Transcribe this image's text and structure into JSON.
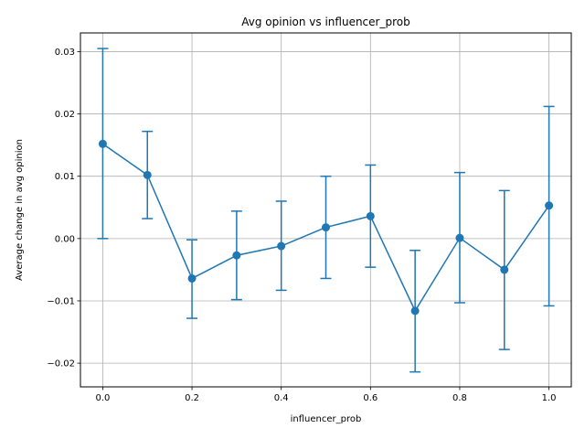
{
  "chart_data": {
    "type": "line",
    "title": "Avg opinion vs influencer_prob",
    "xlabel": "influencer_prob",
    "ylabel": "Average change in avg opinion",
    "xlim": [
      -0.05,
      1.05
    ],
    "ylim": [
      -0.0238,
      0.033
    ],
    "xticks": [
      0.0,
      0.2,
      0.4,
      0.6,
      0.8,
      1.0
    ],
    "xtick_labels": [
      "0.0",
      "0.2",
      "0.4",
      "0.6",
      "0.8",
      "1.0"
    ],
    "yticks": [
      -0.02,
      -0.01,
      0.0,
      0.01,
      0.02,
      0.03
    ],
    "ytick_labels": [
      "−0.02",
      "−0.01",
      "0.00",
      "0.01",
      "0.02",
      "0.03"
    ],
    "grid": true,
    "color": "#1f77b4",
    "series": [
      {
        "x": [
          0.0,
          0.1,
          0.2,
          0.3,
          0.4,
          0.5,
          0.6,
          0.7,
          0.8,
          0.9,
          1.0
        ],
        "y": [
          0.0152,
          0.0102,
          -0.0064,
          -0.0027,
          -0.0012,
          0.0018,
          0.0036,
          -0.0116,
          0.0001,
          -0.005,
          0.0053
        ],
        "err_low": [
          0.0,
          0.0032,
          -0.0128,
          -0.0098,
          -0.0083,
          -0.0064,
          -0.0046,
          -0.0214,
          -0.0103,
          -0.0178,
          -0.0108
        ],
        "err_high": [
          0.0305,
          0.0172,
          -0.0002,
          0.0044,
          0.006,
          0.01,
          0.0118,
          -0.0019,
          0.0106,
          0.0077,
          0.0212
        ]
      }
    ]
  }
}
